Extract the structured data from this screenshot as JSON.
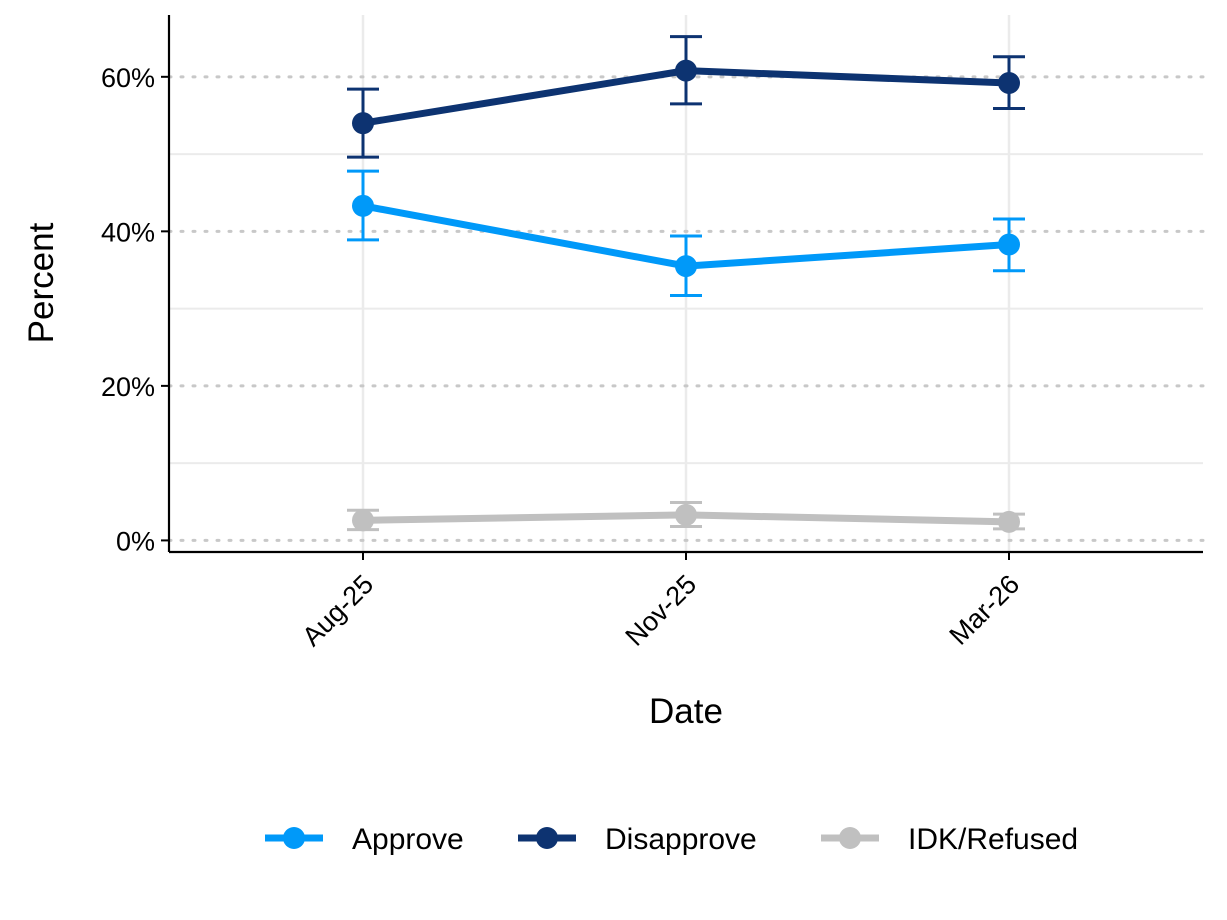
{
  "chart_data": {
    "type": "line",
    "xlabel": "Date",
    "ylabel": "Percent",
    "categories": [
      "Aug-25",
      "Nov-25",
      "Mar-26"
    ],
    "ylim": [
      -1.5,
      68
    ],
    "yticks": [
      {
        "value": 0,
        "label": "0%"
      },
      {
        "value": 20,
        "label": "20%"
      },
      {
        "value": 40,
        "label": "40%"
      },
      {
        "value": 60,
        "label": "60%"
      }
    ],
    "minor_gridlines": [
      10,
      30,
      50
    ],
    "legend_position": "bottom",
    "series": [
      {
        "name": "Approve",
        "color": "#0099f9",
        "values": [
          43.3,
          35.5,
          38.3
        ],
        "error_low": [
          38.9,
          31.7,
          34.9
        ],
        "error_high": [
          47.8,
          39.4,
          41.6
        ]
      },
      {
        "name": "Disapprove",
        "color": "#0d3371",
        "values": [
          54.0,
          60.8,
          59.2
        ],
        "error_low": [
          49.6,
          56.5,
          55.9
        ],
        "error_high": [
          58.4,
          65.2,
          62.6
        ]
      },
      {
        "name": "IDK/Refused",
        "color": "#c0c0c0",
        "values": [
          2.6,
          3.3,
          2.4
        ],
        "error_low": [
          1.4,
          1.8,
          1.5
        ],
        "error_high": [
          3.9,
          4.9,
          3.4
        ]
      }
    ]
  }
}
